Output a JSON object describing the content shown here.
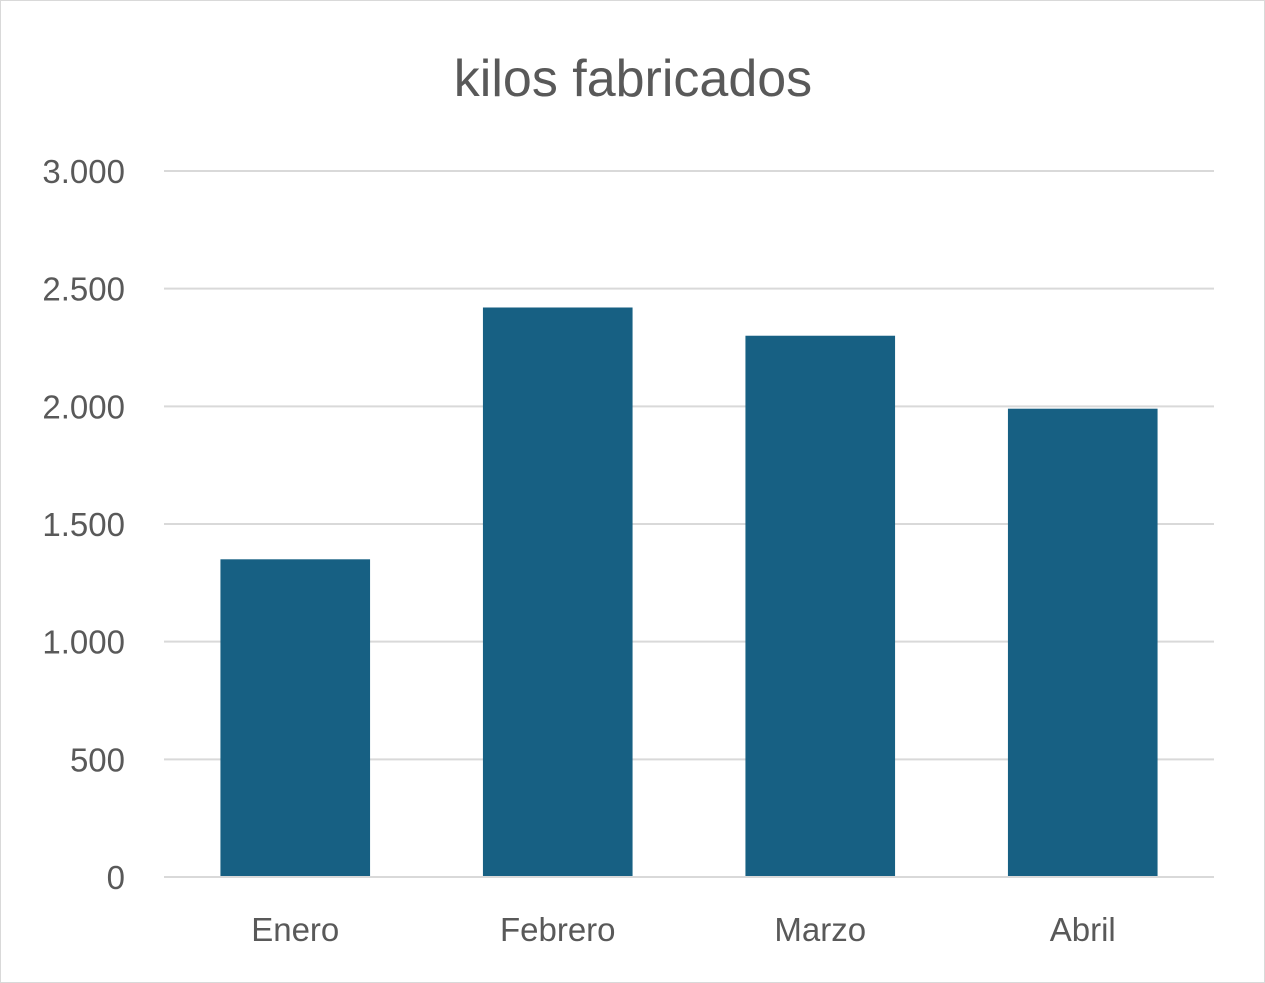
{
  "chart_data": {
    "type": "bar",
    "title": "kilos fabricados",
    "categories": [
      "Enero",
      "Febrero",
      "Marzo",
      "Abril"
    ],
    "series": [
      {
        "values": [
          1350,
          2420,
          2300,
          1990
        ],
        "color": "#176083"
      }
    ],
    "ylim": [
      0,
      3000
    ],
    "yticks": [
      0,
      500,
      1000,
      1500,
      2000,
      2500,
      3000
    ],
    "ytick_labels": [
      "0",
      "500",
      "1.000",
      "1.500",
      "2.000",
      "2.500",
      "3.000"
    ],
    "grid": true,
    "gridline_color": "#d9d9d9",
    "legend": "none"
  }
}
